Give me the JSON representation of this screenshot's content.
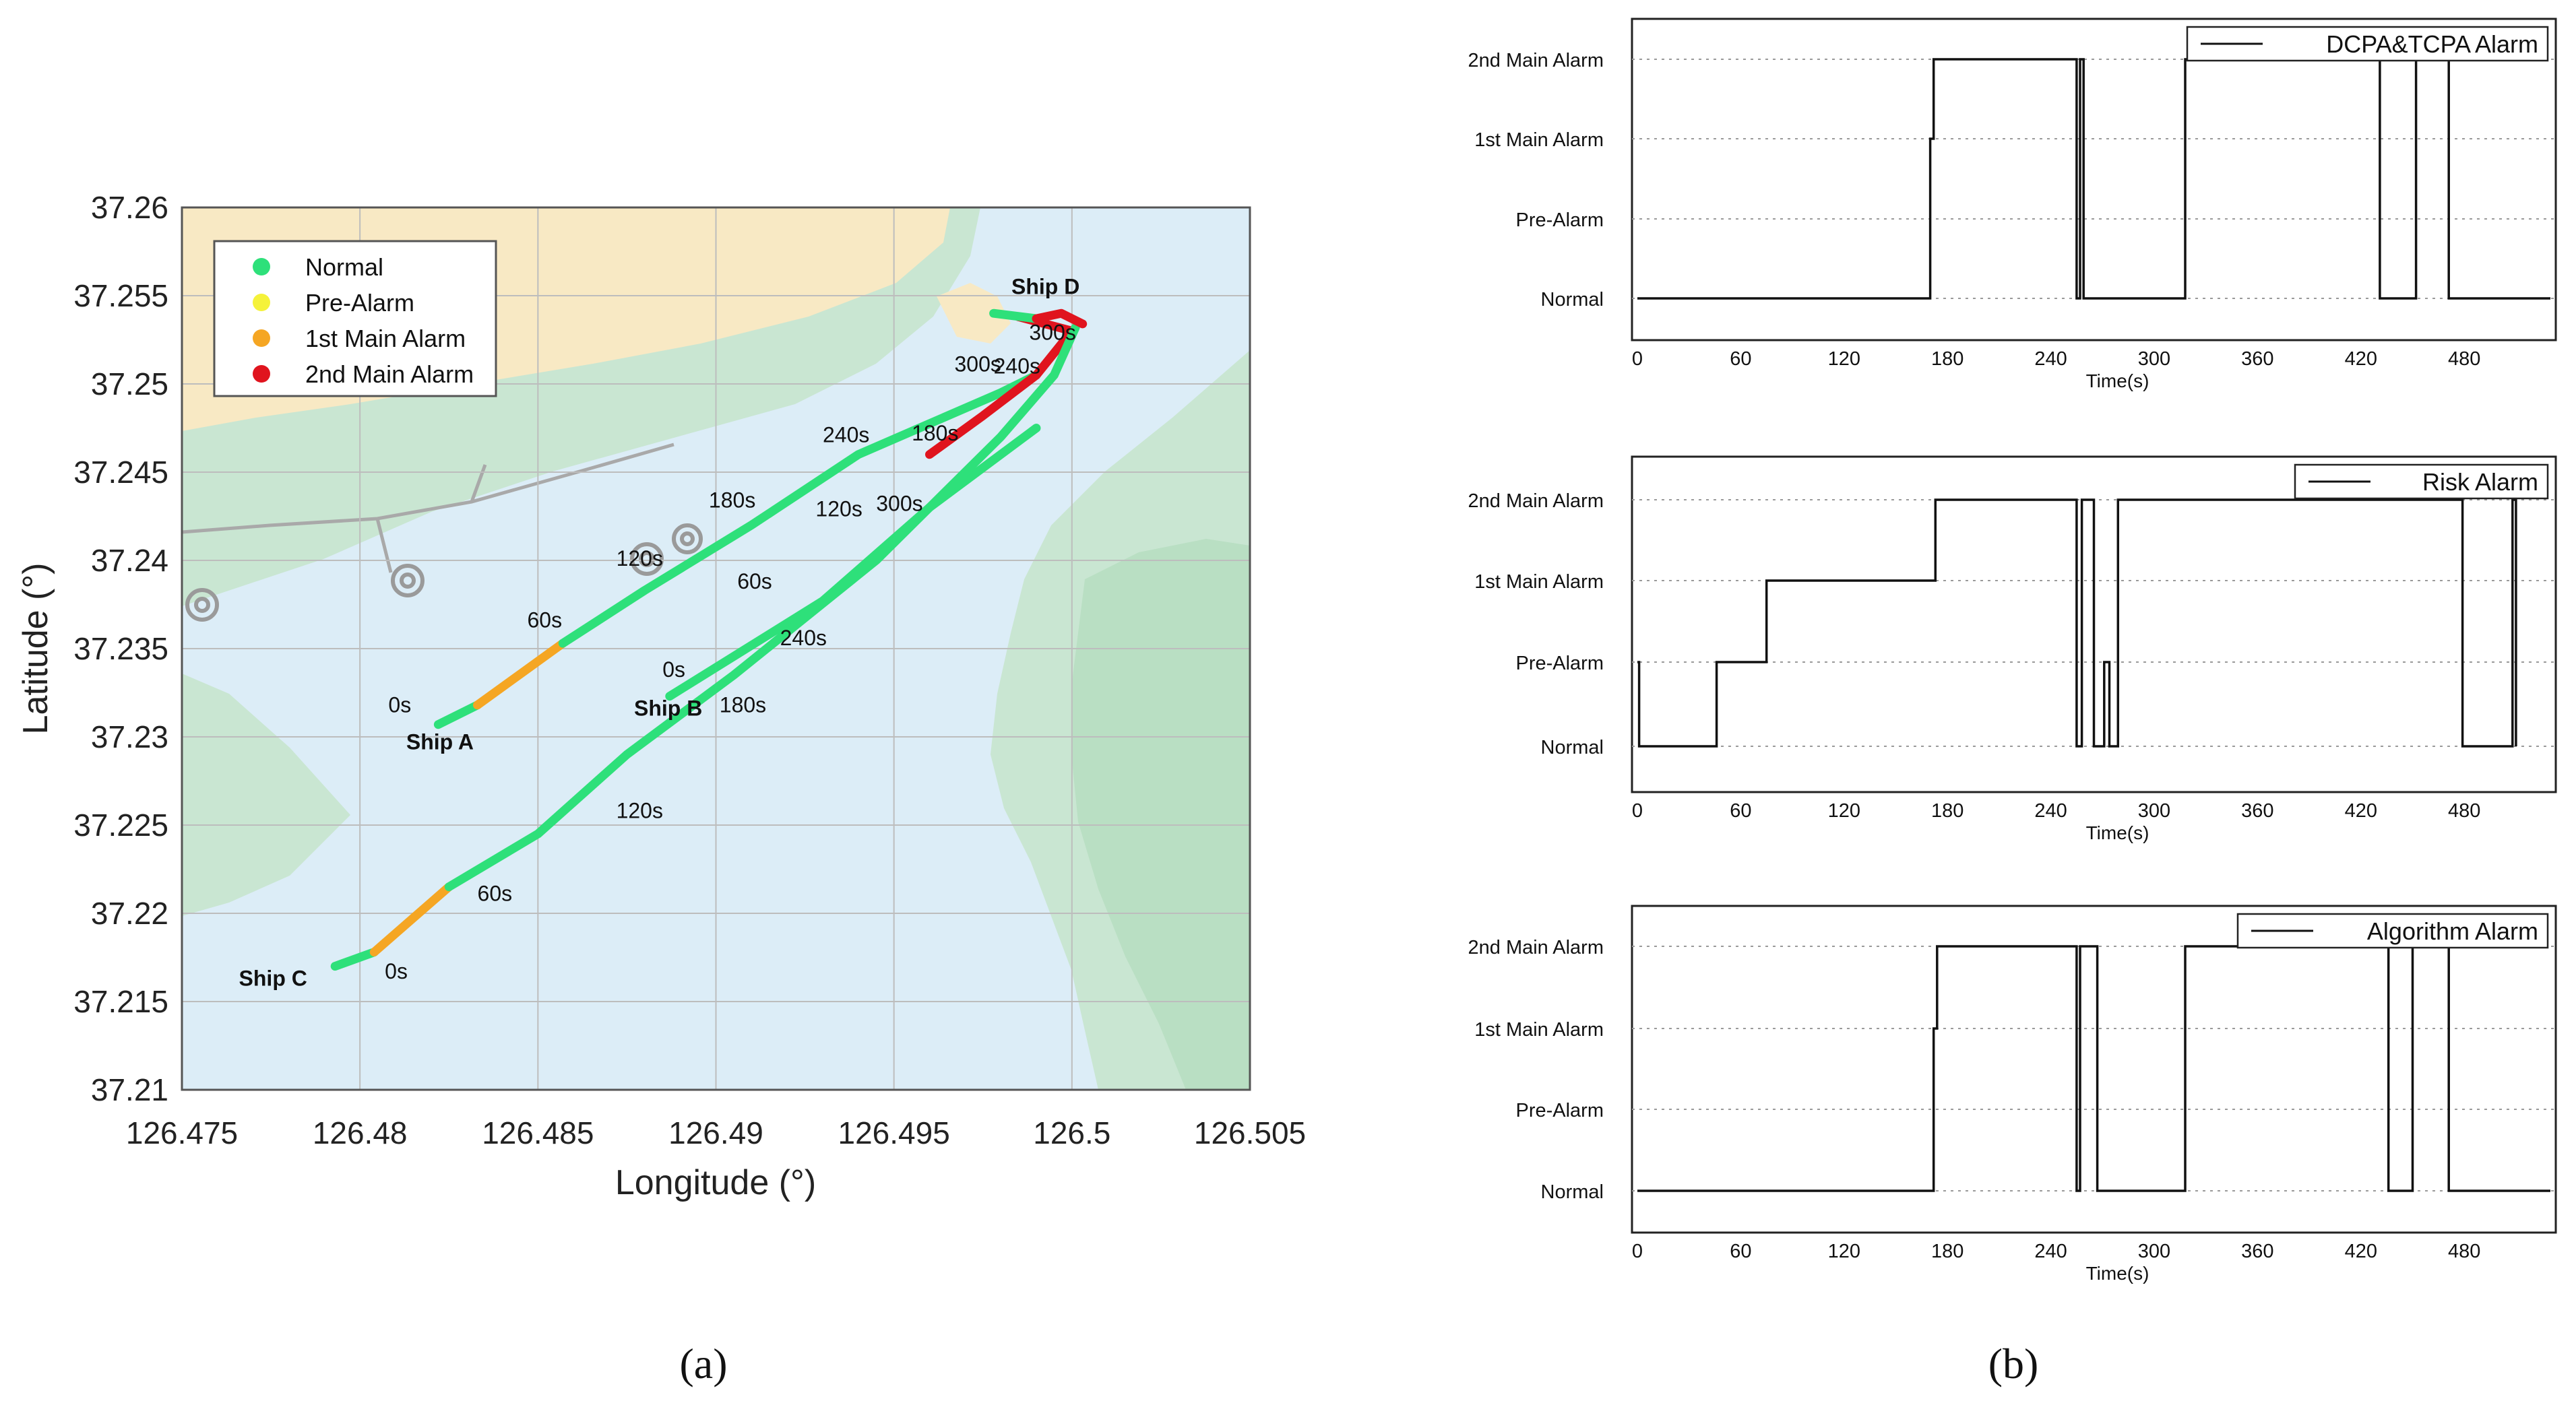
{
  "panel_labels": {
    "a": "(a)",
    "b": "(b)"
  },
  "colors": {
    "sea": "#dcedf7",
    "shallow": "#c9e6d2",
    "land": "#f8e9c4",
    "normal": "#2ee07a",
    "pre_alarm": "#f5f23a",
    "main1": "#f5a623",
    "main2": "#e0141e"
  },
  "chart_data": [
    {
      "type": "scatter",
      "id": "trajectory",
      "xlabel": "Longitude (°)",
      "ylabel": "Latitude (°)",
      "xlim": [
        126.475,
        126.505
      ],
      "ylim": [
        37.21,
        37.26
      ],
      "x_ticks": [
        "126.475",
        "126.48",
        "126.485",
        "126.49",
        "126.495",
        "126.5",
        "126.505"
      ],
      "y_ticks": [
        "37.21",
        "37.215",
        "37.22",
        "37.225",
        "37.23",
        "37.235",
        "37.24",
        "37.245",
        "37.25",
        "37.255",
        "37.26"
      ],
      "grid": true,
      "legend_position": "top-left",
      "legend": [
        "Normal",
        "Pre-Alarm",
        "1st Main Alarm",
        "2nd Main Alarm"
      ],
      "ships": [
        {
          "name": "Ship A",
          "segments": [
            {
              "status": "Normal",
              "points": [
                [
                  126.4822,
                  37.2307
                ],
                [
                  126.4833,
                  37.2318
                ]
              ]
            },
            {
              "status": "1st Main Alarm",
              "points": [
                [
                  126.4833,
                  37.2318
                ],
                [
                  126.4857,
                  37.2353
                ]
              ]
            },
            {
              "status": "Normal",
              "points": [
                [
                  126.4857,
                  37.2353
                ],
                [
                  126.488,
                  37.2383
                ],
                [
                  126.491,
                  37.242
                ],
                [
                  126.494,
                  37.246
                ],
                [
                  126.498,
                  37.2495
                ],
                [
                  126.499,
                  37.2505
                ]
              ]
            }
          ],
          "time_labels": [
            {
              "text": "0s",
              "x": 126.4808,
              "y": 37.2314
            },
            {
              "text": "60s",
              "x": 126.4847,
              "y": 37.2362
            },
            {
              "text": "120s",
              "x": 126.4872,
              "y": 37.2397
            },
            {
              "text": "180s",
              "x": 126.4898,
              "y": 37.243
            },
            {
              "text": "240s",
              "x": 126.493,
              "y": 37.2467
            },
            {
              "text": "300s",
              "x": 126.4967,
              "y": 37.2507
            }
          ],
          "label_pos": [
            126.4813,
            37.2293
          ]
        },
        {
          "name": "Ship B",
          "segments": [
            {
              "status": "Normal",
              "points": [
                [
                  126.4887,
                  37.2323
                ],
                [
                  126.493,
                  37.2377
                ],
                [
                  126.496,
                  37.243
                ],
                [
                  126.499,
                  37.2475
                ]
              ]
            },
            {
              "status": "2nd Main Alarm",
              "points": [
                [
                  126.496,
                  37.246
                ],
                [
                  126.4975,
                  37.2482
                ],
                [
                  126.499,
                  37.2505
                ],
                [
                  126.5,
                  37.253
                ],
                [
                  126.4985,
                  37.2538
                ]
              ]
            }
          ],
          "time_labels": [
            {
              "text": "0s",
              "x": 126.4885,
              "y": 37.2334
            },
            {
              "text": "60s",
              "x": 126.4906,
              "y": 37.2384
            },
            {
              "text": "120s",
              "x": 126.4928,
              "y": 37.2425
            },
            {
              "text": "180s",
              "x": 126.4955,
              "y": 37.2468
            },
            {
              "text": "240s",
              "x": 126.4978,
              "y": 37.2506
            }
          ],
          "label_pos": [
            126.4877,
            37.2312
          ]
        },
        {
          "name": "Ship C",
          "segments": [
            {
              "status": "Normal",
              "points": [
                [
                  126.4793,
                  37.217
                ],
                [
                  126.4804,
                  37.2178
                ]
              ]
            },
            {
              "status": "1st Main Alarm",
              "points": [
                [
                  126.4804,
                  37.2178
                ],
                [
                  126.4825,
                  37.2215
                ]
              ]
            },
            {
              "status": "Normal",
              "points": [
                [
                  126.4825,
                  37.2215
                ],
                [
                  126.485,
                  37.2245
                ],
                [
                  126.4875,
                  37.229
                ],
                [
                  126.4905,
                  37.2335
                ],
                [
                  126.4945,
                  37.24
                ],
                [
                  126.498,
                  37.247
                ],
                [
                  126.4995,
                  37.2505
                ],
                [
                  126.5001,
                  37.2532
                ]
              ]
            }
          ],
          "time_labels": [
            {
              "text": "0s",
              "x": 126.4807,
              "y": 37.2163
            },
            {
              "text": "60s",
              "x": 126.4833,
              "y": 37.2207
            },
            {
              "text": "120s",
              "x": 126.4872,
              "y": 37.2254
            },
            {
              "text": "180s",
              "x": 126.4901,
              "y": 37.2314
            },
            {
              "text": "240s",
              "x": 126.4918,
              "y": 37.2352
            },
            {
              "text": "300s",
              "x": 126.4945,
              "y": 37.2428
            }
          ],
          "label_pos": [
            126.4766,
            37.2159
          ]
        },
        {
          "name": "Ship D",
          "segments": [
            {
              "status": "Normal",
              "points": [
                [
                  126.4978,
                  37.254
                ],
                [
                  126.499,
                  37.2537
                ]
              ]
            },
            {
              "status": "2nd Main Alarm",
              "points": [
                [
                  126.499,
                  37.2537
                ],
                [
                  126.4997,
                  37.254
                ],
                [
                  126.5003,
                  37.2534
                ]
              ]
            }
          ],
          "time_labels": [
            {
              "text": "300s",
              "x": 126.4988,
              "y": 37.2525
            }
          ],
          "label_pos": [
            126.4983,
            37.2551
          ]
        }
      ]
    },
    {
      "type": "line",
      "id": "dcpa_tcpa",
      "title": "",
      "legend": "DCPA&TCPA Alarm",
      "xlabel": "Time(s)",
      "x_ticks": [
        0,
        60,
        120,
        180,
        240,
        300,
        360,
        420,
        480
      ],
      "xlim": [
        0,
        530
      ],
      "levels": [
        "Normal",
        "Pre-Alarm",
        "1st Main Alarm",
        "2nd Main Alarm"
      ],
      "steps": [
        [
          0,
          0
        ],
        [
          170,
          0
        ],
        [
          170,
          2
        ],
        [
          172,
          2
        ],
        [
          172,
          3
        ],
        [
          255,
          3
        ],
        [
          255,
          0
        ],
        [
          257,
          0
        ],
        [
          257,
          3
        ],
        [
          259,
          3
        ],
        [
          259,
          0
        ],
        [
          318,
          0
        ],
        [
          318,
          3
        ],
        [
          431,
          3
        ],
        [
          431,
          0
        ],
        [
          452,
          0
        ],
        [
          452,
          3
        ],
        [
          471,
          3
        ],
        [
          471,
          0
        ],
        [
          530,
          0
        ]
      ]
    },
    {
      "type": "line",
      "id": "risk",
      "title": "",
      "legend": "Risk Alarm",
      "xlabel": "Time(s)",
      "x_ticks": [
        0,
        60,
        120,
        180,
        240,
        300,
        360,
        420,
        480
      ],
      "xlim": [
        0,
        530
      ],
      "levels": [
        "Normal",
        "Pre-Alarm",
        "1st Main Alarm",
        "2nd Main Alarm"
      ],
      "steps": [
        [
          0,
          1
        ],
        [
          1,
          1
        ],
        [
          1,
          0
        ],
        [
          46,
          0
        ],
        [
          46,
          1
        ],
        [
          75,
          1
        ],
        [
          75,
          2
        ],
        [
          173,
          2
        ],
        [
          173,
          3
        ],
        [
          255,
          3
        ],
        [
          255,
          0
        ],
        [
          258,
          0
        ],
        [
          258,
          3
        ],
        [
          265,
          3
        ],
        [
          265,
          0
        ],
        [
          271,
          0
        ],
        [
          271,
          1
        ],
        [
          274,
          1
        ],
        [
          274,
          0
        ],
        [
          279,
          0
        ],
        [
          279,
          3
        ],
        [
          479,
          3
        ],
        [
          479,
          0
        ],
        [
          508,
          0
        ],
        [
          508,
          3
        ],
        [
          510,
          3
        ],
        [
          510,
          0
        ]
      ]
    },
    {
      "type": "line",
      "id": "algorithm",
      "title": "",
      "legend": "Algorithm Alarm",
      "xlabel": "Time(s)",
      "x_ticks": [
        0,
        60,
        120,
        180,
        240,
        300,
        360,
        420,
        480
      ],
      "xlim": [
        0,
        530
      ],
      "levels": [
        "Normal",
        "Pre-Alarm",
        "1st Main Alarm",
        "2nd Main Alarm"
      ],
      "steps": [
        [
          0,
          0
        ],
        [
          172,
          0
        ],
        [
          172,
          2
        ],
        [
          174,
          2
        ],
        [
          174,
          3
        ],
        [
          255,
          3
        ],
        [
          255,
          0
        ],
        [
          257,
          0
        ],
        [
          257,
          3
        ],
        [
          267,
          3
        ],
        [
          267,
          0
        ],
        [
          318,
          0
        ],
        [
          318,
          3
        ],
        [
          436,
          3
        ],
        [
          436,
          0
        ],
        [
          450,
          0
        ],
        [
          450,
          3
        ],
        [
          471,
          3
        ],
        [
          471,
          0
        ],
        [
          530,
          0
        ]
      ]
    }
  ]
}
